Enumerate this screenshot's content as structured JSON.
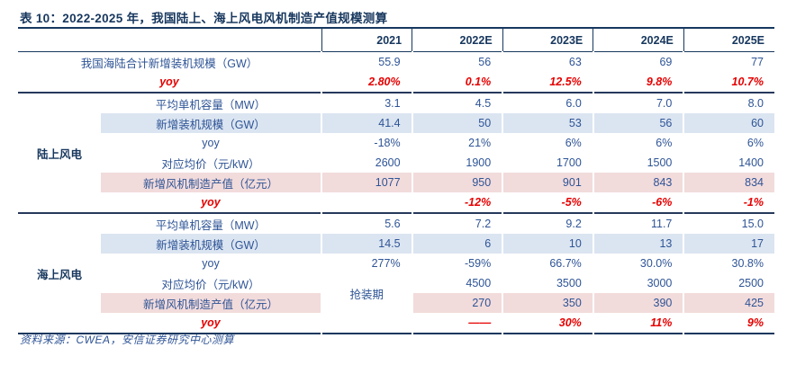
{
  "title": "表 10：2022-2025 年，我国陆上、海上风电风机制造产值规模测算",
  "columns": [
    "2021",
    "2022E",
    "2023E",
    "2024E",
    "2025E"
  ],
  "table": {
    "rows": [
      {
        "label": "我国海陆合计新增装机规模（GW）",
        "label_full": true,
        "cells": [
          "55.9",
          "56",
          "63",
          "69",
          "77"
        ]
      },
      {
        "label": "yoy",
        "label_full": true,
        "style": "red",
        "cells": [
          "2.80%",
          "0.1%",
          "12.5%",
          "9.8%",
          "10.7%"
        ]
      },
      {
        "group": "陆上风电",
        "group_span": 6,
        "divider": true,
        "label": "平均单机容量（MW）",
        "cells": [
          "3.1",
          "4.5",
          "6.0",
          "7.0",
          "8.0"
        ]
      },
      {
        "label": "新增装机规模（GW）",
        "style": "blue",
        "cells": [
          "41.4",
          "50",
          "53",
          "56",
          "60"
        ]
      },
      {
        "label": "yoy",
        "cells": [
          "-18%",
          "21%",
          "6%",
          "6%",
          "6%"
        ]
      },
      {
        "label": "对应均价（元/kW）",
        "cells": [
          "2600",
          "1900",
          "1700",
          "1500",
          "1400"
        ]
      },
      {
        "label": "新增风机制造产值（亿元）",
        "style": "pink",
        "cells": [
          "1077",
          "950",
          "901",
          "843",
          "834"
        ]
      },
      {
        "label": "yoy",
        "style": "red",
        "cells": [
          "",
          "-12%",
          "-5%",
          "-6%",
          "-1%"
        ]
      },
      {
        "group": "海上风电",
        "group_span": 6,
        "divider": true,
        "label": "平均单机容量（MW）",
        "cells": [
          "5.6",
          "7.2",
          "9.2",
          "11.7",
          "15.0"
        ]
      },
      {
        "label": "新增装机规模（GW）",
        "style": "blue",
        "cells": [
          "14.5",
          "6",
          "10",
          "13",
          "17"
        ]
      },
      {
        "label": "yoy",
        "cells": [
          "277%",
          "-59%",
          "66.7%",
          "30.0%",
          "30.8%"
        ]
      },
      {
        "label": "对应均价（元/kW）",
        "cells": [
          {
            "text": "抢装期",
            "rowspan": 2,
            "center": true
          },
          "4500",
          "3500",
          "3000",
          "2500"
        ]
      },
      {
        "label": "新增风机制造产值（亿元）",
        "style": "pink",
        "cells": [
          "270",
          "350",
          "390",
          "425"
        ]
      },
      {
        "label": "yoy",
        "style": "red",
        "cells": [
          "",
          {
            "text": "——",
            "muted": true
          },
          "30%",
          "11%",
          "9%"
        ]
      }
    ]
  },
  "source": "资料来源：CWEA，安信证券研究中心测算",
  "colors": {
    "title_navy": "#17375E",
    "body_blue": "#2E5496",
    "accent_red": "#E60000",
    "row_blue_bg": "#DBE5F1",
    "row_pink_bg": "#F2DBDB"
  }
}
